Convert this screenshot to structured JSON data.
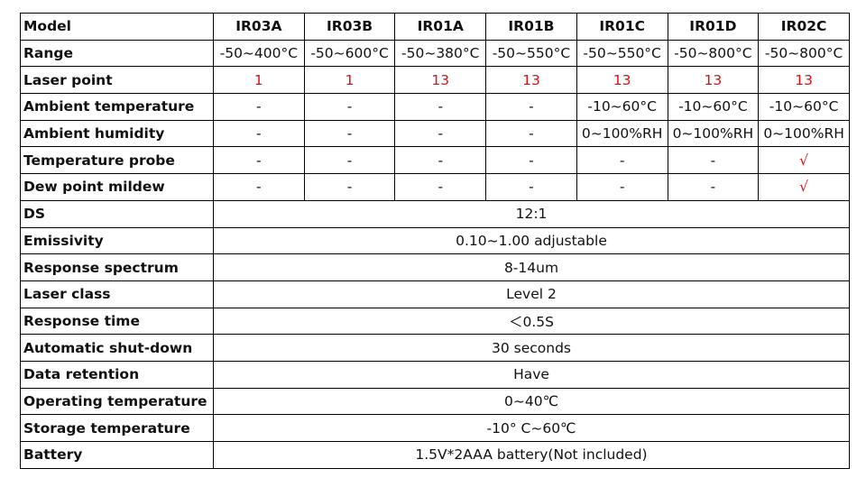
{
  "table": {
    "header": [
      "Model",
      "IR03A",
      "IR03B",
      "IR01A",
      "IR01B",
      "IR01C",
      "IR01D",
      "IR02C"
    ],
    "rows": [
      [
        "Range",
        "-50~400°C",
        "-50~600°C",
        "-50~380°C",
        "-50~550°C",
        "-50~550°C",
        "-50~800°C",
        "-50~800°C"
      ],
      [
        "Laser point",
        "1",
        "1",
        "13",
        "13",
        "13",
        "13",
        "13"
      ],
      [
        "Ambient temperature",
        "-",
        "-",
        "-",
        "-",
        "-10~60°C",
        "-10~60°C",
        "-10~60°C"
      ],
      [
        "Ambient humidity",
        "-",
        "-",
        "-",
        "-",
        "0~100%RH",
        "0~100%RH",
        "0~100%RH"
      ],
      [
        "Temperature probe",
        "-",
        "-",
        "-",
        "-",
        "-",
        "-",
        "√"
      ],
      [
        "Dew point mildew",
        "-",
        "-",
        "-",
        "-",
        "-",
        "-",
        "√"
      ],
      [
        "DS",
        "12:1"
      ],
      [
        "Emissivity",
        "0.10~1.00 adjustable"
      ],
      [
        "Response spectrum",
        "8-14um"
      ],
      [
        "Laser class",
        "Level 2"
      ],
      [
        "Response time",
        "＜0.5S"
      ],
      [
        "Automatic shut-down",
        "30 seconds"
      ],
      [
        "Data retention",
        "Have"
      ],
      [
        "Operating temperature",
        "0~40℃"
      ],
      [
        "Storage temperature",
        "-10° C~60℃"
      ],
      [
        "Battery",
        "1.5V*2AAA battery(Not included)"
      ]
    ]
  }
}
